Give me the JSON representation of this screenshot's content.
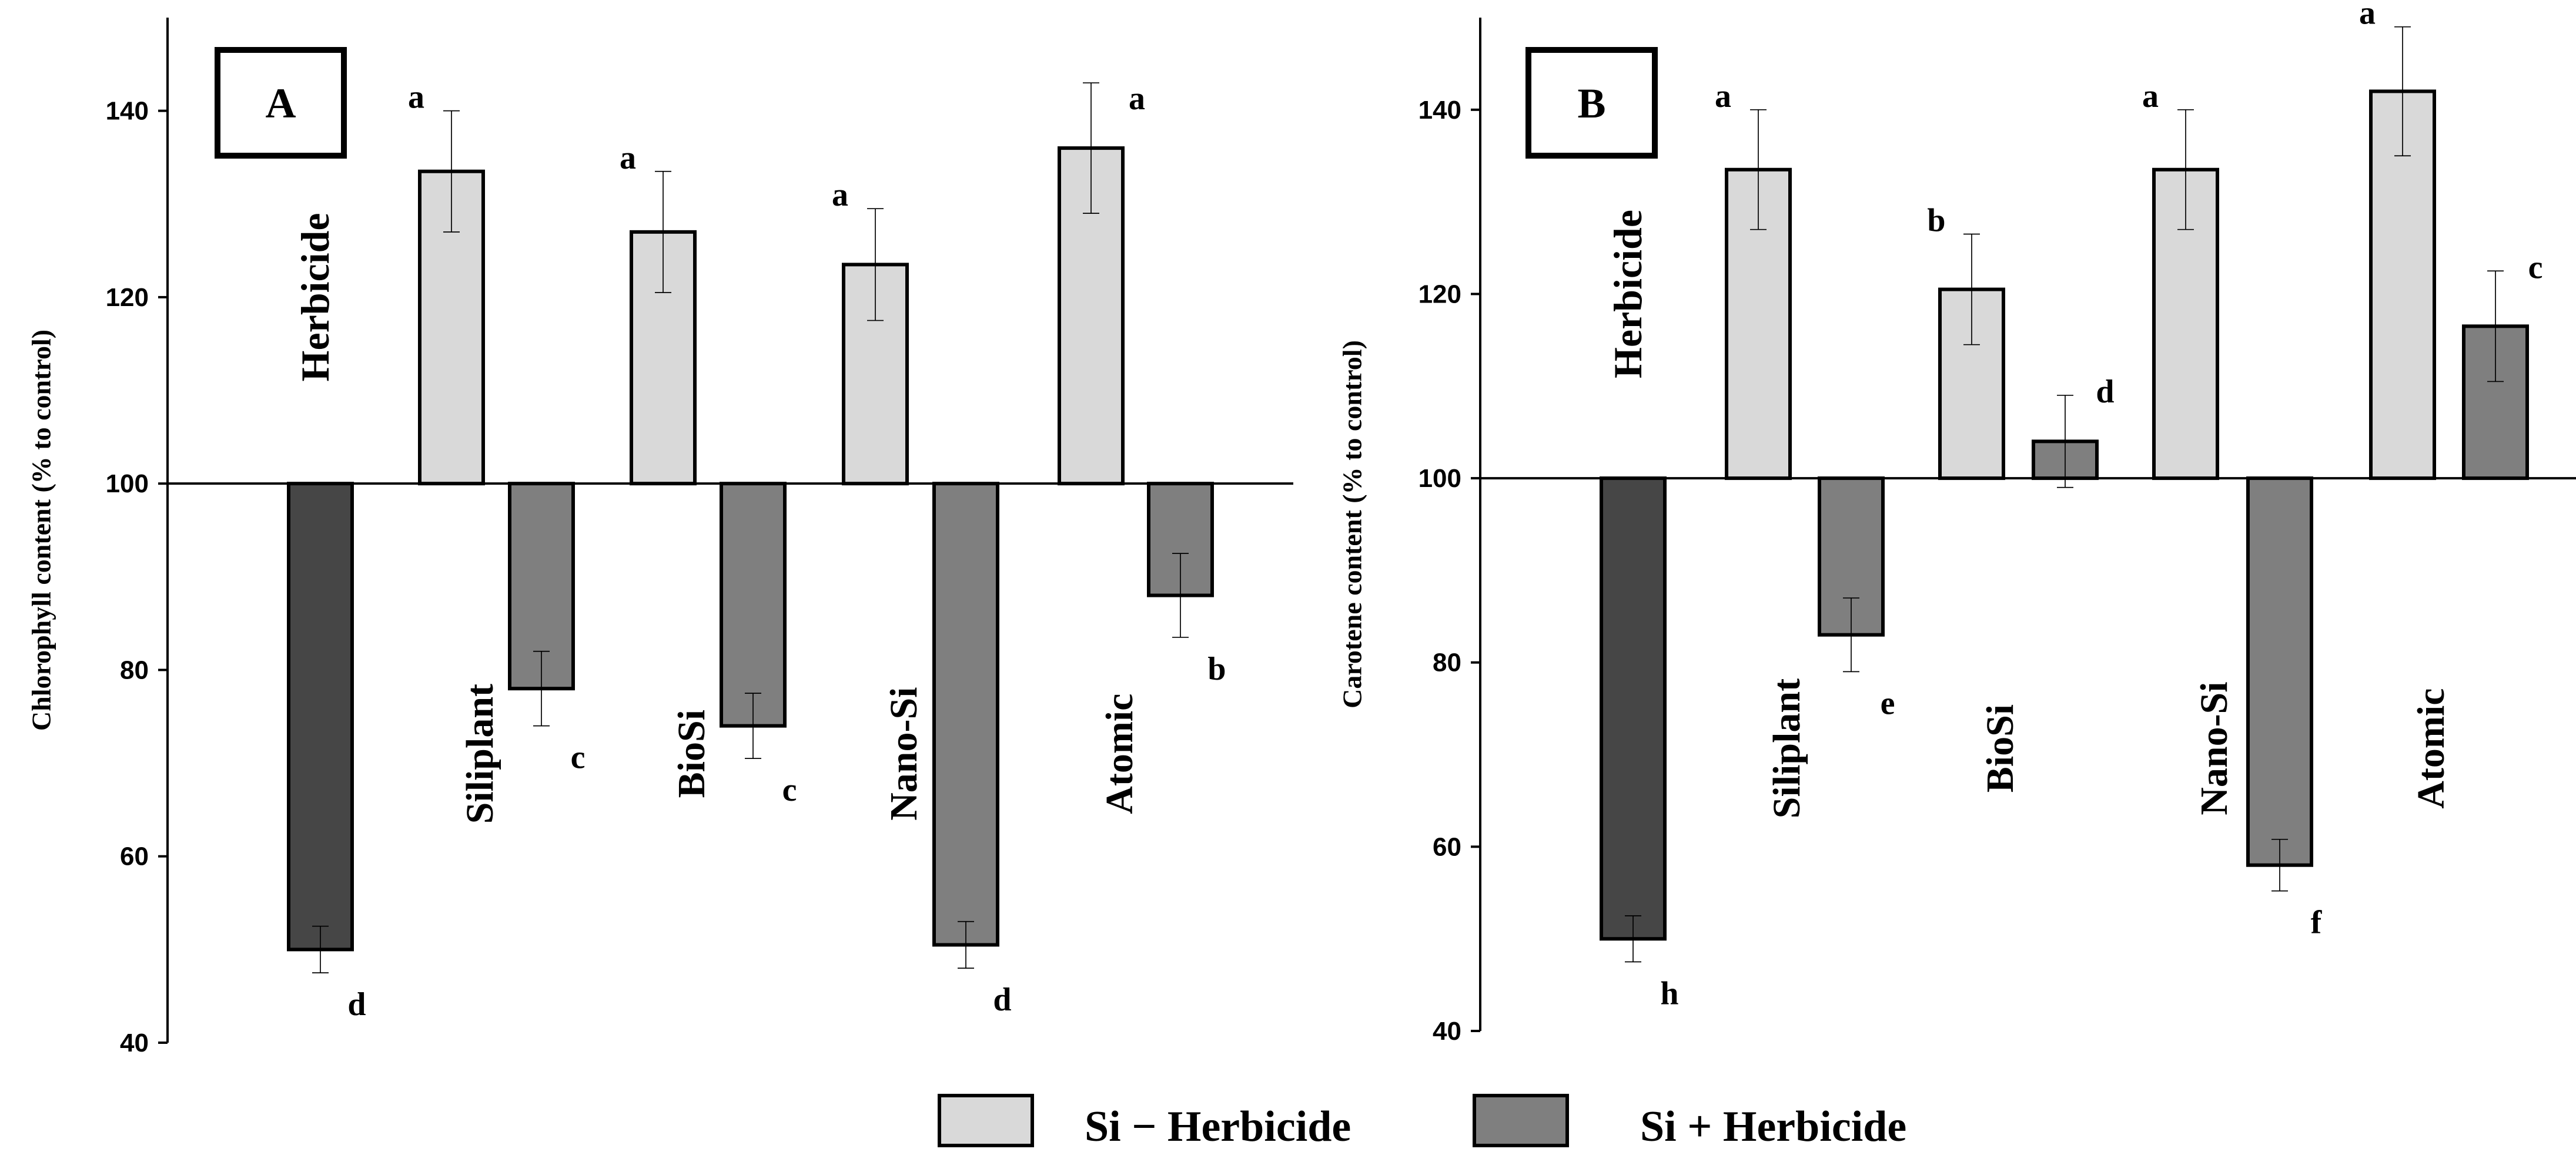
{
  "chart_data": [
    {
      "type": "bar",
      "panel_label": "A",
      "ylabel": "Chlorophyll content (% to control)",
      "ylim": [
        40,
        150
      ],
      "baseline": 100,
      "yticks": [
        40,
        60,
        80,
        100,
        120,
        140
      ],
      "herbicide": {
        "name": "Herbicide",
        "value": 50,
        "error": 2.5,
        "letter": "d"
      },
      "groups": [
        "Siliplant",
        "BioSi",
        "Nano-Si",
        "Atomic"
      ],
      "series": [
        {
          "name": "Si − Herbicide",
          "values": [
            133.5,
            127,
            123.5,
            136
          ],
          "errors": [
            6.5,
            6.5,
            6,
            7
          ],
          "letters": [
            "a",
            "a",
            "a",
            "a"
          ]
        },
        {
          "name": "Si + Herbicide",
          "values": [
            78,
            74,
            50.5,
            88
          ],
          "errors": [
            4,
            3.5,
            2.5,
            4.5
          ],
          "letters": [
            "c",
            "c",
            "d",
            "b"
          ]
        }
      ]
    },
    {
      "type": "bar",
      "panel_label": "B",
      "ylabel": "Carotene content (% to control)",
      "ylim": [
        40,
        150
      ],
      "baseline": 100,
      "yticks": [
        40,
        60,
        80,
        100,
        120,
        140
      ],
      "herbicide": {
        "name": "Herbicide",
        "value": 50,
        "error": 2.5,
        "letter": "h"
      },
      "groups": [
        "Siliplant",
        "BioSi",
        "Nano-Si",
        "Atomic"
      ],
      "series": [
        {
          "name": "Si − Herbicide",
          "values": [
            133.5,
            120.5,
            133.5,
            142
          ],
          "errors": [
            6.5,
            6,
            6.5,
            7
          ],
          "letters": [
            "a",
            "b",
            "a",
            "a"
          ]
        },
        {
          "name": "Si + Herbicide",
          "values": [
            83,
            104,
            58,
            116.5
          ],
          "errors": [
            4,
            5,
            2.8,
            6
          ],
          "letters": [
            "e",
            "d",
            "f",
            "c"
          ]
        }
      ]
    }
  ],
  "legend": [
    {
      "label": "Si − Herbicide",
      "color": "#d9d9d9"
    },
    {
      "label": "Si + Herbicide",
      "color": "#7f7f7f"
    }
  ],
  "colors": {
    "herbicide": "#464646",
    "si_minus": "#d9d9d9",
    "si_plus": "#7f7f7f",
    "stroke": "#000000"
  }
}
